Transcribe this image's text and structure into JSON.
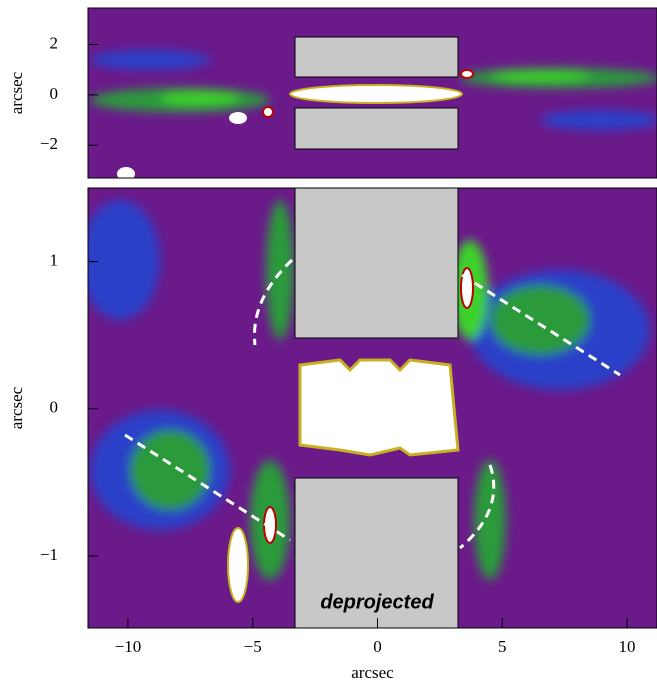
{
  "chart_data": [
    {
      "type": "image",
      "ylabel": "arcsec",
      "xlim": [
        -11.6,
        11.2
      ],
      "ylim": [
        -3.3,
        3.45
      ],
      "yticks": [
        {
          "value": -2,
          "label": "−2"
        },
        0,
        2
      ]
    },
    {
      "type": "image",
      "xlabel": "arcsec",
      "ylabel": "arcsec",
      "annotation": "deprojected",
      "xlim": [
        -11.6,
        11.2
      ],
      "ylim": [
        -1.49,
        1.5
      ],
      "xticks": [
        {
          "value": -10,
          "label": "−10"
        },
        {
          "value": -5,
          "label": "−5"
        },
        0,
        5,
        10
      ],
      "yticks": [
        {
          "value": -1,
          "label": "−1"
        },
        0,
        1
      ]
    }
  ]
}
